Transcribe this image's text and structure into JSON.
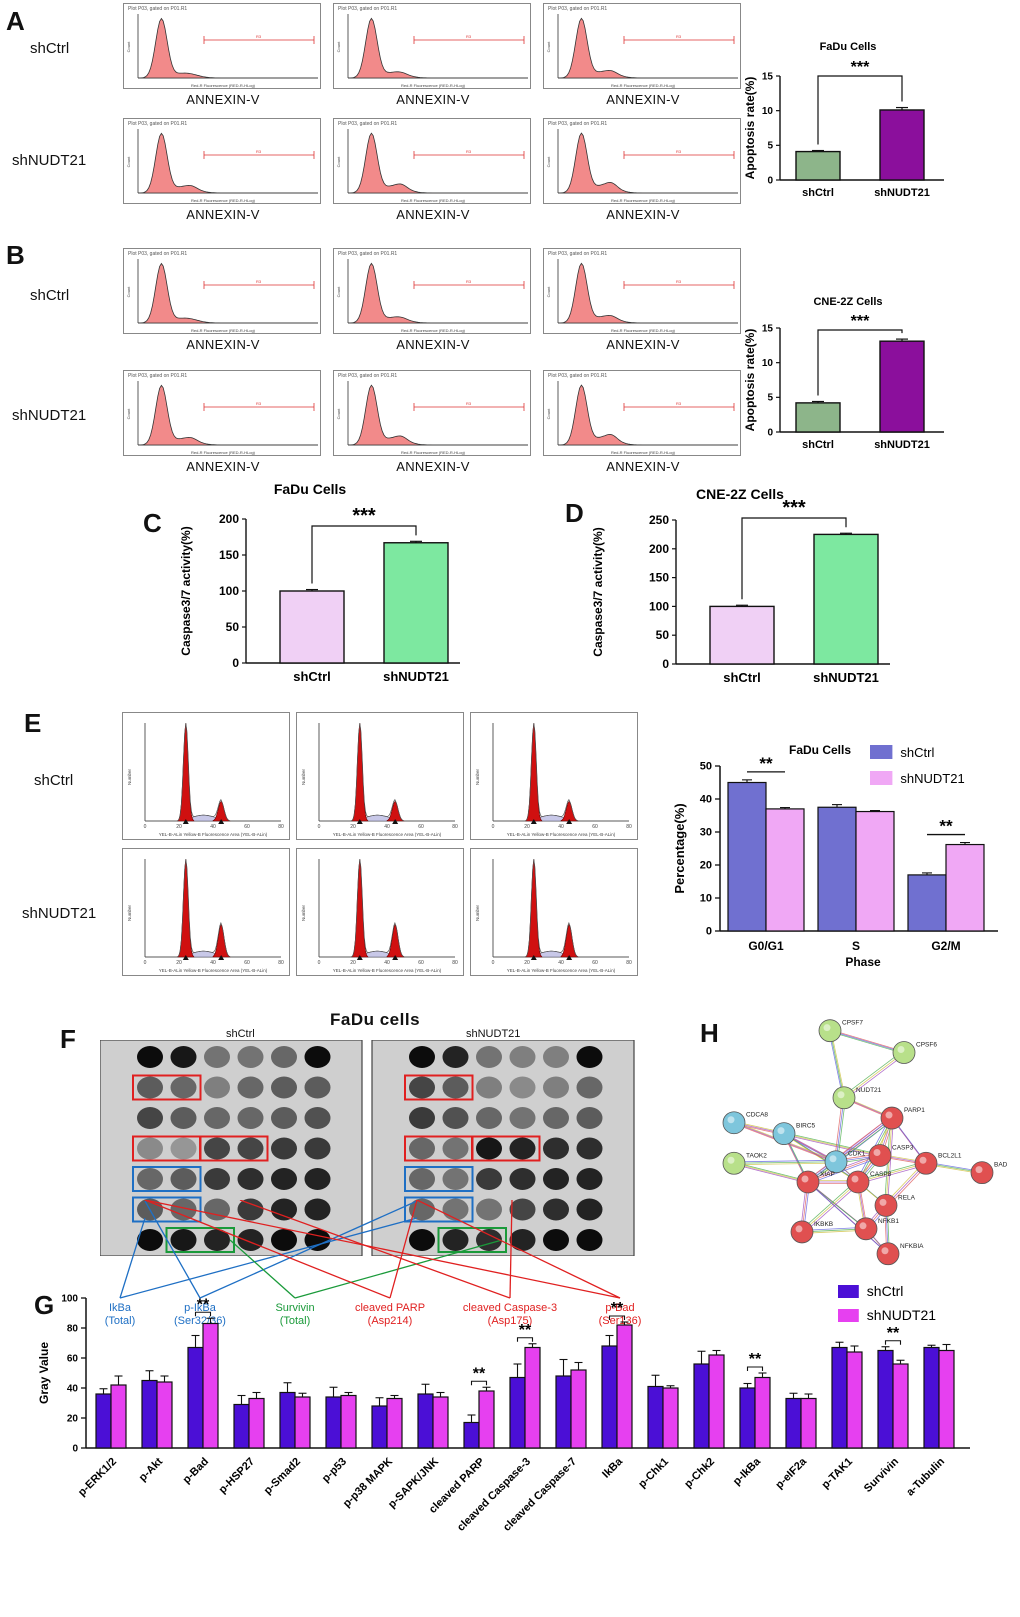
{
  "panels": {
    "A": "A",
    "B": "B",
    "C": "C",
    "D": "D",
    "E": "E",
    "F": "F",
    "G": "G",
    "H": "H"
  },
  "flow": {
    "row_labels": [
      "shCtrl",
      "shNUDT21"
    ],
    "x_caption": "ANNEXIN-V",
    "plot_header": "Plot P03, gated on P01.R1",
    "x_axis_text": "Red-R Fluorescence (RED-R-HLog)",
    "y_axis_text": "Count",
    "gate_label": "R3"
  },
  "cellcycle": {
    "row_labels": [
      "shCtrl",
      "shNUDT21"
    ],
    "x_axis_text": "YEL-B-ALin Yellow-B Fluorescence Area (YEL-B-ALin)",
    "y_axis_text": "Number",
    "x_ticks": [
      "0",
      "20",
      "40",
      "60",
      "80"
    ]
  },
  "blot": {
    "title": "FaDu cells",
    "left_label": "shCtrl",
    "right_label": "shNUDT21",
    "annotations": [
      {
        "l1": "IkBa",
        "l2": "(Total)",
        "color": "#1e6fc4"
      },
      {
        "l1": "p-IkBa",
        "l2": "(Ser32/36)",
        "color": "#1e6fc4"
      },
      {
        "l1": "Survivin",
        "l2": "(Total)",
        "color": "#1a9a3a"
      },
      {
        "l1": "cleaved PARP",
        "l2": "(Asp214)",
        "color": "#e02020"
      },
      {
        "l1": "cleaved Caspase-3",
        "l2": "(Asp175)",
        "color": "#e02020"
      },
      {
        "l1": "p-Bad",
        "l2": "(Ser136)",
        "color": "#e02020"
      }
    ]
  },
  "network": {
    "nodes": [
      "CPSF7",
      "CPSF6",
      "NUDT21",
      "CDCA8",
      "BIRC5",
      "PARP1",
      "TAOK2",
      "CDK1",
      "CASP3",
      "BCL2L1",
      "BAD",
      "XIAP",
      "CASP8",
      "RELA",
      "IKBKB",
      "NFKB1",
      "NFKBIA"
    ]
  },
  "chart_data": [
    {
      "type": "bar",
      "title": "FaDu Cells",
      "ylabel": "Apoptosis rate(%)",
      "categories": [
        "shCtrl",
        "shNUDT21"
      ],
      "values": [
        4.1,
        10.1
      ],
      "errors": [
        0.15,
        0.35
      ],
      "ylim": [
        0,
        15
      ],
      "yticks": [
        "0",
        "5",
        "10",
        "15"
      ],
      "significance": "***",
      "colors": [
        "#8db58a",
        "#8b0f9c"
      ]
    },
    {
      "type": "bar",
      "title": "CNE-2Z Cells",
      "ylabel": "Apoptosis rate(%)",
      "categories": [
        "shCtrl",
        "shNUDT21"
      ],
      "values": [
        4.2,
        13.1
      ],
      "errors": [
        0.2,
        0.3
      ],
      "ylim": [
        0,
        15
      ],
      "yticks": [
        "0",
        "5",
        "10",
        "15"
      ],
      "significance": "***",
      "colors": [
        "#8db58a",
        "#8b0f9c"
      ]
    },
    {
      "type": "bar",
      "title": "FaDu Cells",
      "ylabel": "Caspase3/7 activity(%)",
      "categories": [
        "shCtrl",
        "shNUDT21"
      ],
      "values": [
        100,
        167
      ],
      "errors": [
        2,
        2
      ],
      "ylim": [
        0,
        200
      ],
      "yticks": [
        "0",
        "50",
        "100",
        "150",
        "200"
      ],
      "significance": "***",
      "colors": [
        "#f0d0f5",
        "#7de8a0"
      ]
    },
    {
      "type": "bar",
      "title": "CNE-2Z Cells",
      "ylabel": "Caspase3/7 activity(%)",
      "categories": [
        "shCtrl",
        "shNUDT21"
      ],
      "values": [
        100,
        225
      ],
      "errors": [
        2,
        2
      ],
      "ylim": [
        0,
        250
      ],
      "yticks": [
        "0",
        "50",
        "100",
        "150",
        "200",
        "250"
      ],
      "significance": "***",
      "colors": [
        "#f0d0f5",
        "#7de8a0"
      ]
    },
    {
      "type": "bar",
      "title": "FaDu Cells",
      "ylabel": "Percentage(%)",
      "xlabel": "Phase",
      "categories": [
        "G0/G1",
        "S",
        "G2/M"
      ],
      "series": [
        {
          "name": "shCtrl",
          "values": [
            45.0,
            37.5,
            17.0
          ],
          "errors": [
            0.8,
            0.8,
            0.6
          ],
          "color": "#7070d0"
        },
        {
          "name": "shNUDT21",
          "values": [
            37.0,
            36.2,
            26.2
          ],
          "errors": [
            0.4,
            0.3,
            0.6
          ],
          "color": "#f0a8f5"
        }
      ],
      "ylim": [
        0,
        50
      ],
      "yticks": [
        "0",
        "10",
        "20",
        "30",
        "40",
        "50"
      ],
      "significance": [
        {
          "index": 0,
          "label": "**"
        },
        {
          "index": 2,
          "label": "**"
        }
      ],
      "legend": "top-right"
    },
    {
      "type": "bar",
      "ylabel": "Gray Value",
      "categories": [
        "p-ERK1/2",
        "p-Akt",
        "p-Bad",
        "p-HSP27",
        "p-Smad2",
        "p-p53",
        "p-p38 MAPK",
        "p-SAPK/JNK",
        "cleaved PARP",
        "cleaved Caspase-3",
        "cleaved Caspase-7",
        "IkBa",
        "p-Chk1",
        "p-Chk2",
        "p-IkBa",
        "p-eIF2a",
        "p-TAK1",
        "Survivin",
        "a-Tubulin"
      ],
      "series": [
        {
          "name": "shCtrl",
          "values": [
            36,
            45,
            67,
            29,
            37,
            34,
            28,
            36,
            17,
            47,
            48,
            68,
            41,
            56,
            40,
            33,
            67,
            65,
            67
          ],
          "errors": [
            3.5,
            6.5,
            8,
            6,
            6.5,
            6.5,
            5.5,
            6.5,
            5,
            9,
            11,
            7,
            7.5,
            8.5,
            3,
            3.5,
            3.5,
            2.5,
            1.5
          ],
          "color": "#4b0fd6"
        },
        {
          "name": "shNUDT21",
          "values": [
            42,
            44,
            83,
            33,
            34,
            35,
            33,
            34,
            38,
            67,
            52,
            82,
            40,
            62,
            47,
            33,
            64,
            56,
            65
          ],
          "errors": [
            6,
            4,
            3.5,
            4,
            2.5,
            2,
            2,
            3,
            2.5,
            2.5,
            5,
            2,
            1.5,
            3,
            3,
            3,
            4,
            2.5,
            4
          ],
          "color": "#e640f0"
        }
      ],
      "ylim": [
        0,
        100
      ],
      "yticks": [
        "0",
        "20",
        "40",
        "60",
        "80",
        "100"
      ],
      "significance": [
        {
          "index": 2,
          "label": "**"
        },
        {
          "index": 8,
          "label": "**"
        },
        {
          "index": 9,
          "label": "**"
        },
        {
          "index": 11,
          "label": "**"
        },
        {
          "index": 14,
          "label": "**"
        },
        {
          "index": 17,
          "label": "**"
        }
      ],
      "legend": "top-right"
    }
  ]
}
